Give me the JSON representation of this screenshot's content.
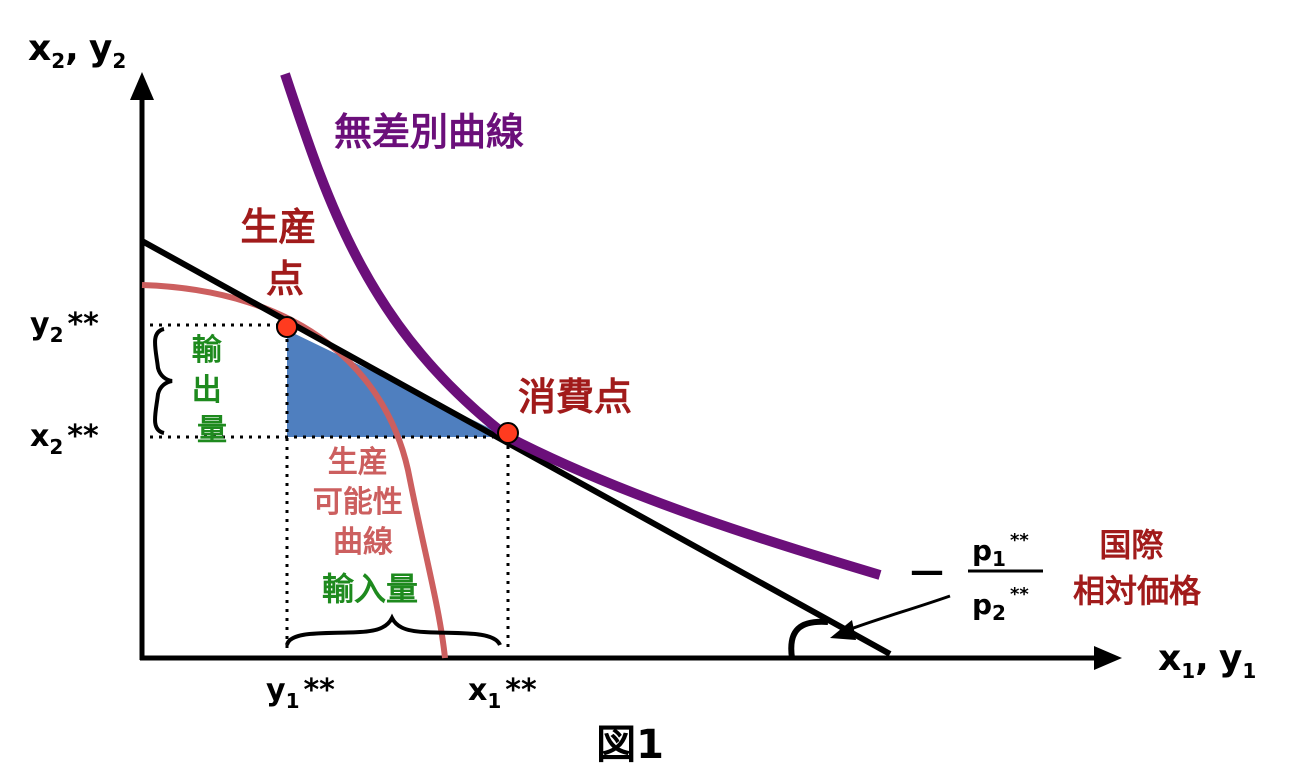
{
  "colors": {
    "axis": "#000000",
    "indifference_curve": "#6b0f7a",
    "ppf_curve": "#cc5f5f",
    "point_fill": "#ff3b1f",
    "triangle": "#4f7fbf",
    "dark_red_label": "#a11b1b",
    "ppf_label": "#cc5f5f",
    "green_label": "#1e8a1e"
  },
  "axes": {
    "y_axis": {
      "var1": "x",
      "sub1": "2",
      "sep": ",",
      "var2": "y",
      "sub2": "2"
    },
    "x_axis": {
      "var1": "x",
      "sub1": "1",
      "sep": ",",
      "var2": "y",
      "sub2": "1"
    }
  },
  "ticks": {
    "y2": {
      "var": "y",
      "sub": "2",
      "stars": "**"
    },
    "x2": {
      "var": "x",
      "sub": "2",
      "stars": "**"
    },
    "y1": {
      "var": "y",
      "sub": "1",
      "stars": "**"
    },
    "x1": {
      "var": "x",
      "sub": "1",
      "stars": "**"
    }
  },
  "labels": {
    "indifference_curve": "無差別曲線",
    "production_point_line1": "生産",
    "production_point_line2": "点",
    "consumption_point": "消費点",
    "export_volume": [
      "輸",
      "出",
      "量"
    ],
    "ppf": [
      "生産",
      "可能性",
      "曲線"
    ],
    "import_volume": "輸入量",
    "price_minus": "—",
    "price_num": {
      "var": "p",
      "sub": "1",
      "stars": "**"
    },
    "price_den": {
      "var": "p",
      "sub": "2",
      "stars": "**"
    },
    "intl_price_line1": "国際",
    "intl_price_line2": "相対価格"
  },
  "caption": "図1"
}
